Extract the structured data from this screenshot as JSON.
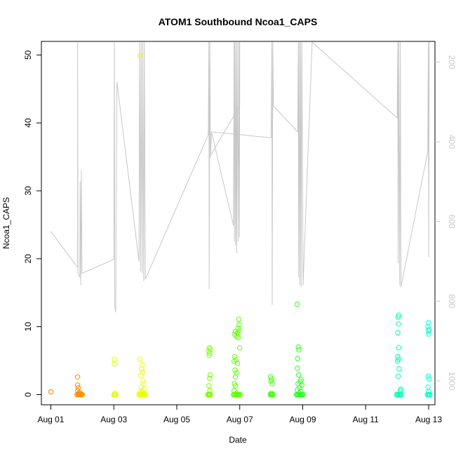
{
  "chart_data": {
    "type": "scatter",
    "title": "ATOM1 Southbound Ncoa1_CAPS",
    "xlabel": "Date",
    "ylabel": "Ncoa1_CAPS",
    "x_ticks": [
      "Aug 01",
      "Aug 03",
      "Aug 05",
      "Aug 07",
      "Aug 09",
      "Aug 11",
      "Aug 13"
    ],
    "x_ticks_value": [
      1,
      3,
      5,
      7,
      9,
      11,
      13
    ],
    "xlim": [
      0.7,
      13.2
    ],
    "ylim": [
      -1.5,
      52
    ],
    "y_ticks": [
      0,
      10,
      20,
      30,
      40,
      50
    ],
    "right_axis": {
      "label": "",
      "reversed": true,
      "ticks": [
        200,
        400,
        600,
        800,
        1000
      ],
      "ylim": [
        1060,
        148
      ],
      "line_color": "#c8c8c8"
    },
    "point_color_scale": [
      "#ff6f00",
      "#ff9a00",
      "#e8ff00",
      "#7cff00",
      "#3dff00",
      "#00ff8c",
      "#00ffd0"
    ],
    "series": [
      {
        "kind": "points",
        "points": [
          [
            1.0,
            0.4,
            "#ff7f00"
          ],
          [
            1.85,
            2.6,
            "#ff8c00"
          ],
          [
            1.85,
            1.4,
            "#ff8c00"
          ],
          [
            1.87,
            1.0,
            "#ff8c00"
          ],
          [
            1.85,
            0.6,
            "#ff8c00"
          ],
          [
            1.9,
            0.3,
            "#ff8c00"
          ],
          [
            1.83,
            0.0,
            "#ff8c00"
          ],
          [
            1.86,
            0.0,
            "#ff8c00"
          ],
          [
            1.89,
            0.0,
            "#ff8c00"
          ],
          [
            1.92,
            0.0,
            "#ff8c00"
          ],
          [
            1.95,
            0.0,
            "#ff8c00"
          ],
          [
            1.98,
            0.0,
            "#ff8c00"
          ],
          [
            2.0,
            0.0,
            "#ff8c00"
          ],
          [
            1.88,
            0.1,
            "#ff8c00"
          ],
          [
            1.94,
            0.2,
            "#ff8c00"
          ],
          [
            3.02,
            5.2,
            "#ddff00"
          ],
          [
            3.02,
            4.5,
            "#ddff00"
          ],
          [
            3.0,
            0.0,
            "#ddff00"
          ],
          [
            3.03,
            0.0,
            "#ddff00"
          ],
          [
            3.06,
            0.0,
            "#ddff00"
          ],
          [
            3.04,
            0.2,
            "#ddff00"
          ],
          [
            3.84,
            49.9,
            "#e8ff00"
          ],
          [
            3.83,
            5.2,
            "#e8ff00"
          ],
          [
            3.9,
            4.4,
            "#e8ff00"
          ],
          [
            3.88,
            3.8,
            "#e8ff00"
          ],
          [
            3.92,
            3.3,
            "#e8ff00"
          ],
          [
            3.86,
            2.8,
            "#e8ff00"
          ],
          [
            3.93,
            2.0,
            "#e8ff00"
          ],
          [
            3.95,
            1.6,
            "#e8ff00"
          ],
          [
            3.87,
            1.1,
            "#e8ff00"
          ],
          [
            3.96,
            0.8,
            "#e8ff00"
          ],
          [
            3.9,
            0.5,
            "#e8ff00"
          ],
          [
            3.85,
            0.4,
            "#e8ff00"
          ],
          [
            3.8,
            0.0,
            "#e8ff00"
          ],
          [
            3.83,
            0.0,
            "#e8ff00"
          ],
          [
            3.86,
            0.0,
            "#e8ff00"
          ],
          [
            3.89,
            0.0,
            "#e8ff00"
          ],
          [
            3.92,
            0.0,
            "#e8ff00"
          ],
          [
            3.95,
            0.0,
            "#e8ff00"
          ],
          [
            3.98,
            0.0,
            "#e8ff00"
          ],
          [
            4.0,
            0.0,
            "#e8ff00"
          ],
          [
            3.88,
            0.2,
            "#e8ff00"
          ],
          [
            3.94,
            0.2,
            "#e8ff00"
          ],
          [
            6.03,
            6.9,
            "#7cff00"
          ],
          [
            6.06,
            6.7,
            "#7cff00"
          ],
          [
            6.02,
            6.4,
            "#7cff00"
          ],
          [
            6.05,
            6.1,
            "#7cff00"
          ],
          [
            6.03,
            5.8,
            "#7cff00"
          ],
          [
            6.06,
            2.9,
            "#7cff00"
          ],
          [
            6.04,
            2.4,
            "#7cff00"
          ],
          [
            6.02,
            1.3,
            "#7cff00"
          ],
          [
            6.05,
            0.6,
            "#7cff00"
          ],
          [
            5.98,
            0.0,
            "#7cff00"
          ],
          [
            6.01,
            0.0,
            "#7cff00"
          ],
          [
            6.04,
            0.0,
            "#7cff00"
          ],
          [
            6.07,
            0.0,
            "#7cff00"
          ],
          [
            6.03,
            0.1,
            "#7cff00"
          ],
          [
            6.97,
            11.1,
            "#5cff00"
          ],
          [
            6.98,
            10.3,
            "#5cff00"
          ],
          [
            6.95,
            9.8,
            "#5cff00"
          ],
          [
            6.98,
            9.4,
            "#5cff00"
          ],
          [
            6.92,
            9.1,
            "#5cff00"
          ],
          [
            6.86,
            9.3,
            "#5cff00"
          ],
          [
            6.83,
            8.9,
            "#5cff00"
          ],
          [
            6.9,
            8.6,
            "#5cff00"
          ],
          [
            6.95,
            8.4,
            "#5cff00"
          ],
          [
            7.0,
            6.9,
            "#5cff00"
          ],
          [
            6.84,
            5.6,
            "#5cff00"
          ],
          [
            6.88,
            5.1,
            "#5cff00"
          ],
          [
            6.82,
            4.9,
            "#5cff00"
          ],
          [
            6.93,
            4.6,
            "#5cff00"
          ],
          [
            6.85,
            3.6,
            "#5cff00"
          ],
          [
            6.9,
            3.2,
            "#5cff00"
          ],
          [
            6.86,
            2.6,
            "#5cff00"
          ],
          [
            6.83,
            1.6,
            "#5cff00"
          ],
          [
            6.87,
            1.3,
            "#5cff00"
          ],
          [
            6.82,
            0.6,
            "#5cff00"
          ],
          [
            6.8,
            0.0,
            "#5cff00"
          ],
          [
            6.83,
            0.0,
            "#5cff00"
          ],
          [
            6.86,
            0.0,
            "#5cff00"
          ],
          [
            6.89,
            0.0,
            "#5cff00"
          ],
          [
            6.92,
            0.0,
            "#5cff00"
          ],
          [
            6.95,
            0.0,
            "#5cff00"
          ],
          [
            6.98,
            0.0,
            "#5cff00"
          ],
          [
            7.01,
            0.0,
            "#5cff00"
          ],
          [
            6.9,
            0.2,
            "#5cff00"
          ],
          [
            7.98,
            2.6,
            "#3dff00"
          ],
          [
            8.02,
            2.3,
            "#3dff00"
          ],
          [
            7.99,
            2.0,
            "#3dff00"
          ],
          [
            8.03,
            1.6,
            "#3dff00"
          ],
          [
            8.0,
            0.2,
            "#3dff00"
          ],
          [
            7.97,
            0.0,
            "#3dff00"
          ],
          [
            8.0,
            0.0,
            "#3dff00"
          ],
          [
            8.03,
            0.0,
            "#3dff00"
          ],
          [
            8.06,
            0.0,
            "#3dff00"
          ],
          [
            8.82,
            13.3,
            "#2aff20"
          ],
          [
            8.86,
            7.0,
            "#2aff20"
          ],
          [
            8.88,
            6.6,
            "#2aff20"
          ],
          [
            8.84,
            5.3,
            "#2aff20"
          ],
          [
            8.83,
            3.9,
            "#2aff20"
          ],
          [
            8.87,
            2.9,
            "#2aff20"
          ],
          [
            8.95,
            2.2,
            "#2aff20"
          ],
          [
            8.92,
            1.9,
            "#2aff20"
          ],
          [
            8.85,
            1.6,
            "#2aff20"
          ],
          [
            8.97,
            1.4,
            "#2aff20"
          ],
          [
            8.9,
            1.0,
            "#2aff20"
          ],
          [
            8.83,
            0.7,
            "#2aff20"
          ],
          [
            8.94,
            0.5,
            "#2aff20"
          ],
          [
            8.8,
            0.0,
            "#2aff20"
          ],
          [
            8.83,
            0.0,
            "#2aff20"
          ],
          [
            8.86,
            0.0,
            "#2aff20"
          ],
          [
            8.89,
            0.0,
            "#2aff20"
          ],
          [
            8.92,
            0.0,
            "#2aff20"
          ],
          [
            8.95,
            0.0,
            "#2aff20"
          ],
          [
            8.98,
            0.0,
            "#2aff20"
          ],
          [
            9.01,
            0.0,
            "#2aff20"
          ],
          [
            8.9,
            0.2,
            "#2aff20"
          ],
          [
            12.05,
            11.7,
            "#00ffb0"
          ],
          [
            12.03,
            11.4,
            "#00ffb0"
          ],
          [
            12.04,
            10.4,
            "#00ffb0"
          ],
          [
            12.02,
            9.1,
            "#00ffb0"
          ],
          [
            12.05,
            6.9,
            "#00ffb0"
          ],
          [
            12.02,
            5.6,
            "#00ffb0"
          ],
          [
            12.04,
            5.2,
            "#00ffb0"
          ],
          [
            12.01,
            4.9,
            "#00ffb0"
          ],
          [
            12.06,
            3.8,
            "#00ffb0"
          ],
          [
            12.03,
            2.7,
            "#00ffb0"
          ],
          [
            12.12,
            0.8,
            "#00ffb0"
          ],
          [
            12.1,
            0.6,
            "#00ffb0"
          ],
          [
            11.98,
            0.0,
            "#00ffb0"
          ],
          [
            12.01,
            0.0,
            "#00ffb0"
          ],
          [
            12.04,
            0.0,
            "#00ffb0"
          ],
          [
            12.07,
            0.0,
            "#00ffb0"
          ],
          [
            12.1,
            0.0,
            "#00ffb0"
          ],
          [
            12.13,
            0.0,
            "#00ffb0"
          ],
          [
            13.0,
            10.6,
            "#00ffcc"
          ],
          [
            12.98,
            10.0,
            "#00ffcc"
          ],
          [
            13.02,
            9.6,
            "#00ffcc"
          ],
          [
            12.99,
            9.4,
            "#00ffcc"
          ],
          [
            13.0,
            8.9,
            "#00ffcc"
          ],
          [
            12.99,
            2.7,
            "#00ffcc"
          ],
          [
            13.01,
            2.3,
            "#00ffcc"
          ],
          [
            12.98,
            1.1,
            "#00ffcc"
          ],
          [
            13.0,
            0.4,
            "#00ffcc"
          ],
          [
            12.96,
            0.0,
            "#00ffcc"
          ],
          [
            12.99,
            0.0,
            "#00ffcc"
          ],
          [
            13.02,
            0.0,
            "#00ffcc"
          ],
          [
            13.04,
            0.0,
            "#00ffcc"
          ]
        ]
      },
      {
        "kind": "depth_line",
        "axis": "right",
        "points": [
          [
            1.0,
            625
          ],
          [
            1.85,
            715
          ],
          [
            1.85,
            150
          ],
          [
            1.86,
            730
          ],
          [
            1.92,
            740
          ],
          [
            1.93,
            500
          ],
          [
            1.95,
            760
          ],
          [
            1.97,
            470
          ],
          [
            1.99,
            730
          ],
          [
            3.0,
            695
          ],
          [
            3.02,
            150
          ],
          [
            3.03,
            810
          ],
          [
            3.06,
            828
          ],
          [
            3.1,
            250
          ],
          [
            3.8,
            700
          ],
          [
            3.82,
            150
          ],
          [
            3.85,
            725
          ],
          [
            3.87,
            150
          ],
          [
            3.9,
            730
          ],
          [
            3.92,
            150
          ],
          [
            3.95,
            750
          ],
          [
            3.97,
            150
          ],
          [
            4.0,
            745
          ],
          [
            6.0,
            382
          ],
          [
            6.02,
            150
          ],
          [
            6.03,
            770
          ],
          [
            6.05,
            150
          ],
          [
            6.07,
            440
          ],
          [
            6.1,
            375
          ],
          [
            6.8,
            610
          ],
          [
            6.82,
            150
          ],
          [
            6.83,
            650
          ],
          [
            6.84,
            150
          ],
          [
            6.87,
            660
          ],
          [
            6.88,
            150
          ],
          [
            6.9,
            680
          ],
          [
            6.92,
            150
          ],
          [
            6.95,
            650
          ],
          [
            6.97,
            150
          ],
          [
            6.99,
            640
          ],
          [
            7.0,
            150
          ],
          [
            7.0,
            310
          ],
          [
            6.07,
            435
          ],
          [
            6.1,
            375
          ],
          [
            8.0,
            390
          ],
          [
            8.02,
            150
          ],
          [
            8.03,
            810
          ],
          [
            8.05,
            150
          ],
          [
            8.07,
            310
          ],
          [
            8.84,
            375
          ],
          [
            8.86,
            150
          ],
          [
            8.87,
            740
          ],
          [
            8.89,
            150
          ],
          [
            8.91,
            760
          ],
          [
            8.93,
            150
          ],
          [
            8.95,
            765
          ],
          [
            8.97,
            150
          ],
          [
            8.99,
            420
          ],
          [
            9.01,
            760
          ],
          [
            9.3,
            150
          ],
          [
            12.0,
            340
          ],
          [
            12.02,
            150
          ],
          [
            12.03,
            705
          ],
          [
            12.05,
            150
          ],
          [
            12.08,
            760
          ],
          [
            12.1,
            150
          ],
          [
            12.12,
            765
          ],
          [
            12.97,
            425
          ],
          [
            12.99,
            150
          ],
          [
            13.0,
            690
          ],
          [
            13.02,
            150
          ]
        ]
      }
    ]
  }
}
